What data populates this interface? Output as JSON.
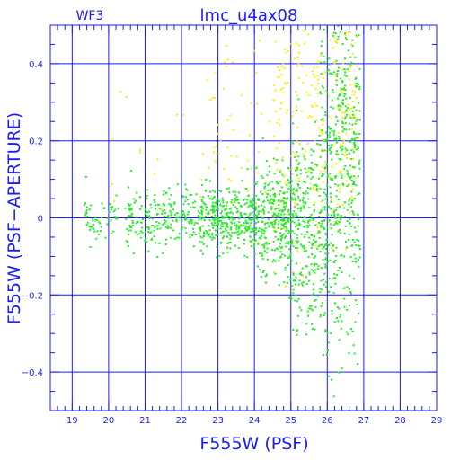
{
  "chart_data": {
    "type": "scatter",
    "title": "lmc_u4ax08",
    "panel_label": "WF3",
    "xlabel": "F555W (PSF)",
    "ylabel": "F555W (PSF−APERTURE)",
    "xlim": [
      18.4,
      29.0
    ],
    "ylim": [
      -0.5,
      0.5
    ],
    "x_ticks": [
      19,
      20,
      21,
      22,
      23,
      24,
      25,
      26,
      27,
      28,
      29
    ],
    "y_ticks": [
      -0.4,
      -0.2,
      0,
      0.2,
      0.4
    ],
    "grid": true,
    "colors": {
      "axes": "#1a1aff",
      "green_points": "#22ee22",
      "yellow_points": "#ffee00"
    },
    "series": [
      {
        "color_name": "green",
        "seed": 11,
        "clusters": [
          {
            "x": [
              19.3,
              20.5
            ],
            "y_center": 0.0,
            "y_spread": 0.03,
            "count": 60
          },
          {
            "x": [
              20.5,
              22.5
            ],
            "y_center": 0.0,
            "y_spread": 0.04,
            "count": 220
          },
          {
            "x": [
              22.5,
              24.0
            ],
            "y_center": 0.0,
            "y_spread": 0.045,
            "count": 330
          },
          {
            "x": [
              24.0,
              25.0
            ],
            "y_center": -0.01,
            "y_spread": 0.07,
            "count": 300
          },
          {
            "x": [
              25.0,
              26.0
            ],
            "y_center": 0.0,
            "y_spread": 0.12,
            "count": 320
          },
          {
            "x": [
              26.0,
              26.9
            ],
            "y_center": 0.05,
            "y_spread": 0.2,
            "count": 300
          },
          {
            "x": [
              25.8,
              26.9
            ],
            "y_center": 0.3,
            "y_spread": 0.12,
            "count": 120
          },
          {
            "x": [
              25.4,
              26.3
            ],
            "y_center": -0.25,
            "y_spread": 0.06,
            "count": 25
          }
        ]
      },
      {
        "color_name": "yellow",
        "seed": 29,
        "clusters": [
          {
            "x": [
              20.0,
              23.5
            ],
            "y_center": 0.2,
            "y_spread": 0.12,
            "count": 25
          },
          {
            "x": [
              22.5,
              24.8
            ],
            "y_center": 0.25,
            "y_spread": 0.15,
            "count": 45
          },
          {
            "x": [
              24.5,
              26.9
            ],
            "y_center": 0.3,
            "y_spread": 0.15,
            "count": 230
          },
          {
            "x": [
              24.8,
              26.8
            ],
            "y_center": 0.05,
            "y_spread": 0.1,
            "count": 50
          }
        ]
      }
    ]
  }
}
